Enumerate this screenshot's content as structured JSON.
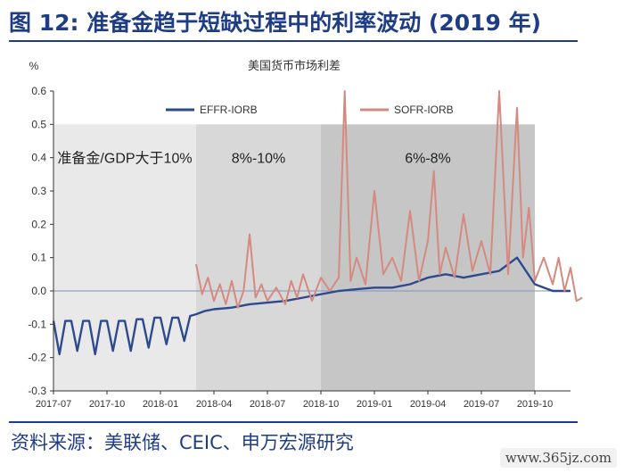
{
  "header": {
    "title": "图 12: 准备金趋于短缺过程中的利率波动 (2019 年)"
  },
  "footer": {
    "source": "资料来源：美联储、CEIC、申万宏源研究",
    "watermark": "www.365jz.com"
  },
  "colors": {
    "efffr": "#2e4a8e",
    "sofr": "#d58a80",
    "region1": "#e9e9e9",
    "region2": "#d8d8d8",
    "region3": "#c6c6c6",
    "zero_line": "#7f93bd"
  },
  "chart_data": {
    "type": "line",
    "title": "美国货币市场利差",
    "ylabel": "%",
    "xlabel": "",
    "ylim": [
      -0.3,
      0.6
    ],
    "y_ticks": [
      "0.6",
      "0.5",
      "0.4",
      "0.3",
      "0.2",
      "0.1",
      "0.0",
      "-0.1",
      "-0.2",
      "-0.3"
    ],
    "x_ticks": [
      "2017-07",
      "2017-10",
      "2018-01",
      "2018-04",
      "2018-07",
      "2018-10",
      "2019-01",
      "2019-04",
      "2019-07",
      "2019-10"
    ],
    "x_range": [
      "2017-07",
      "2019-12"
    ],
    "legend": "top",
    "regions": [
      {
        "label": "准备金/GDP大于10%",
        "from": "2017-07",
        "to": "2018-03"
      },
      {
        "label": "8%-10%",
        "from": "2018-03",
        "to": "2018-10"
      },
      {
        "label": "6%-8%",
        "from": "2018-10",
        "to": "2019-10"
      }
    ],
    "series": [
      {
        "name": "EFFR-IORB",
        "points": [
          [
            "2017-07",
            -0.09
          ],
          [
            "2017-07",
            -0.19
          ],
          [
            "2017-07",
            -0.09
          ],
          [
            "2017-08",
            -0.09
          ],
          [
            "2017-08",
            -0.18
          ],
          [
            "2017-08",
            -0.09
          ],
          [
            "2017-09",
            -0.09
          ],
          [
            "2017-09",
            -0.19
          ],
          [
            "2017-09",
            -0.09
          ],
          [
            "2017-10",
            -0.09
          ],
          [
            "2017-10",
            -0.18
          ],
          [
            "2017-10",
            -0.09
          ],
          [
            "2017-11",
            -0.09
          ],
          [
            "2017-11",
            -0.18
          ],
          [
            "2017-11",
            -0.085
          ],
          [
            "2017-12",
            -0.085
          ],
          [
            "2017-12",
            -0.17
          ],
          [
            "2017-12",
            -0.08
          ],
          [
            "2018-01",
            -0.08
          ],
          [
            "2018-01",
            -0.16
          ],
          [
            "2018-01",
            -0.08
          ],
          [
            "2018-02",
            -0.08
          ],
          [
            "2018-02",
            -0.15
          ],
          [
            "2018-02",
            -0.075
          ],
          [
            "2018-03",
            -0.07
          ],
          [
            "2018-03",
            -0.06
          ],
          [
            "2018-04",
            -0.055
          ],
          [
            "2018-05",
            -0.05
          ],
          [
            "2018-06",
            -0.04
          ],
          [
            "2018-07",
            -0.035
          ],
          [
            "2018-08",
            -0.03
          ],
          [
            "2018-09",
            -0.02
          ],
          [
            "2018-10",
            -0.01
          ],
          [
            "2018-11",
            0.0
          ],
          [
            "2018-12",
            0.005
          ],
          [
            "2019-01",
            0.01
          ],
          [
            "2019-02",
            0.01
          ],
          [
            "2019-03",
            0.02
          ],
          [
            "2019-04",
            0.04
          ],
          [
            "2019-05",
            0.05
          ],
          [
            "2019-06",
            0.04
          ],
          [
            "2019-07",
            0.05
          ],
          [
            "2019-08",
            0.06
          ],
          [
            "2019-09",
            0.1
          ],
          [
            "2019-10",
            0.02
          ],
          [
            "2019-11",
            0.0
          ],
          [
            "2019-12",
            0.0
          ]
        ]
      },
      {
        "name": "SOFR-IORB",
        "points": [
          [
            "2018-03",
            0.08
          ],
          [
            "2018-03",
            -0.01
          ],
          [
            "2018-03",
            0.04
          ],
          [
            "2018-04",
            -0.03
          ],
          [
            "2018-04",
            0.02
          ],
          [
            "2018-04",
            -0.04
          ],
          [
            "2018-05",
            0.03
          ],
          [
            "2018-05",
            -0.05
          ],
          [
            "2018-05",
            0.0
          ],
          [
            "2018-06",
            0.17
          ],
          [
            "2018-06",
            -0.02
          ],
          [
            "2018-06",
            0.02
          ],
          [
            "2018-07",
            -0.03
          ],
          [
            "2018-07",
            0.01
          ],
          [
            "2018-08",
            -0.04
          ],
          [
            "2018-08",
            0.03
          ],
          [
            "2018-08",
            -0.02
          ],
          [
            "2018-09",
            0.05
          ],
          [
            "2018-09",
            -0.03
          ],
          [
            "2018-10",
            0.04
          ],
          [
            "2018-10",
            0.0
          ],
          [
            "2018-11",
            0.04
          ],
          [
            "2018-11",
            0.6
          ],
          [
            "2018-11",
            0.03
          ],
          [
            "2018-12",
            0.1
          ],
          [
            "2018-12",
            0.02
          ],
          [
            "2019-01",
            0.3
          ],
          [
            "2019-01",
            0.05
          ],
          [
            "2019-02",
            0.1
          ],
          [
            "2019-02",
            0.03
          ],
          [
            "2019-03",
            0.24
          ],
          [
            "2019-03",
            0.03
          ],
          [
            "2019-04",
            0.15
          ],
          [
            "2019-04",
            0.36
          ],
          [
            "2019-04",
            0.05
          ],
          [
            "2019-05",
            0.13
          ],
          [
            "2019-05",
            0.04
          ],
          [
            "2019-06",
            0.23
          ],
          [
            "2019-06",
            0.06
          ],
          [
            "2019-07",
            0.15
          ],
          [
            "2019-07",
            0.05
          ],
          [
            "2019-08",
            0.6
          ],
          [
            "2019-08",
            0.05
          ],
          [
            "2019-09",
            0.55
          ],
          [
            "2019-09",
            0.1
          ],
          [
            "2019-09",
            0.25
          ],
          [
            "2019-10",
            0.03
          ],
          [
            "2019-10",
            0.1
          ],
          [
            "2019-11",
            0.02
          ],
          [
            "2019-11",
            0.1
          ],
          [
            "2019-11",
            0.0
          ],
          [
            "2019-12",
            0.07
          ],
          [
            "2019-12",
            -0.03
          ],
          [
            "2019-12",
            -0.02
          ]
        ]
      }
    ]
  }
}
